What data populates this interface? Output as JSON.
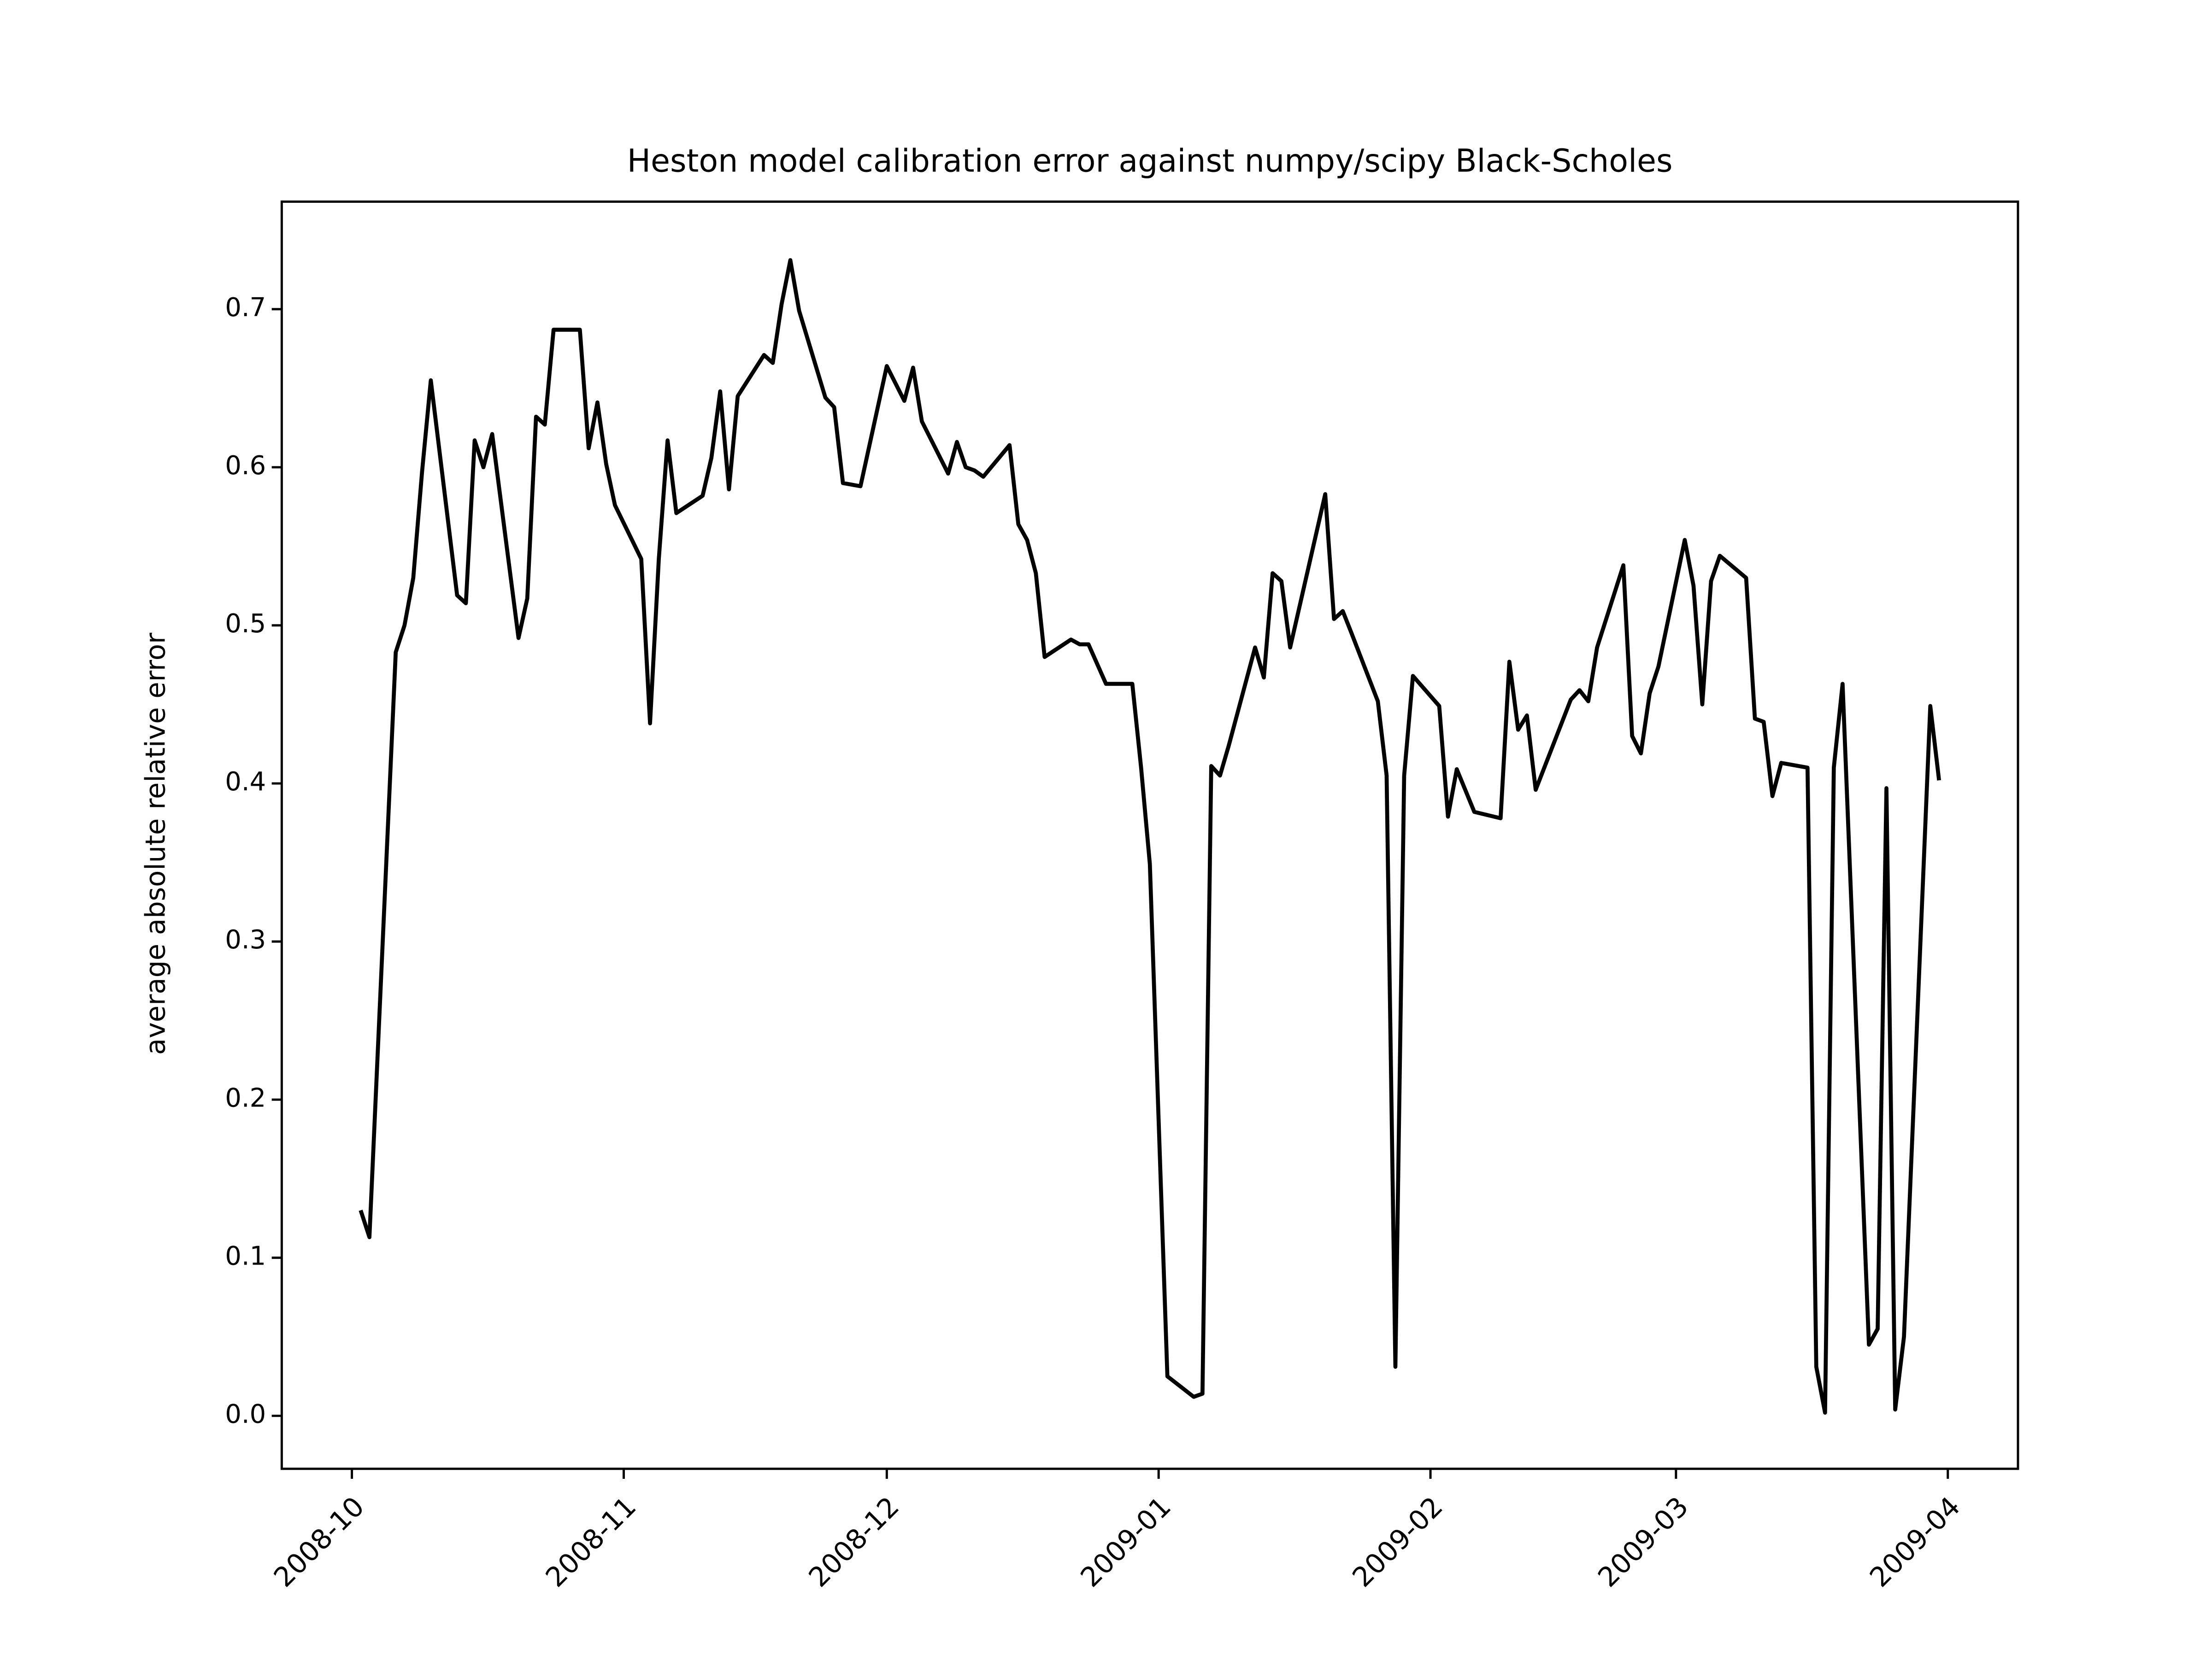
{
  "chart_data": {
    "type": "line",
    "title": "Heston model calibration error against numpy/scipy Black-Scholes",
    "y_label": "average absolute relative error",
    "x": [
      "2008-10-02",
      "2008-10-03",
      "2008-10-06",
      "2008-10-07",
      "2008-10-08",
      "2008-10-09",
      "2008-10-10",
      "2008-10-13",
      "2008-10-14",
      "2008-10-15",
      "2008-10-16",
      "2008-10-17",
      "2008-10-20",
      "2008-10-21",
      "2008-10-22",
      "2008-10-23",
      "2008-10-24",
      "2008-10-27",
      "2008-10-28",
      "2008-10-29",
      "2008-10-30",
      "2008-10-31",
      "2008-11-03",
      "2008-11-04",
      "2008-11-05",
      "2008-11-06",
      "2008-11-07",
      "2008-11-10",
      "2008-11-11",
      "2008-11-12",
      "2008-11-13",
      "2008-11-14",
      "2008-11-17",
      "2008-11-18",
      "2008-11-19",
      "2008-11-20",
      "2008-11-21",
      "2008-11-24",
      "2008-11-25",
      "2008-11-26",
      "2008-11-28",
      "2008-12-01",
      "2008-12-02",
      "2008-12-03",
      "2008-12-04",
      "2008-12-05",
      "2008-12-08",
      "2008-12-09",
      "2008-12-10",
      "2008-12-11",
      "2008-12-12",
      "2008-12-15",
      "2008-12-16",
      "2008-12-17",
      "2008-12-18",
      "2008-12-19",
      "2008-12-22",
      "2008-12-23",
      "2008-12-24",
      "2008-12-26",
      "2008-12-29",
      "2008-12-30",
      "2008-12-31",
      "2009-01-02",
      "2009-01-05",
      "2009-01-06",
      "2009-01-07",
      "2009-01-08",
      "2009-01-09",
      "2009-01-12",
      "2009-01-13",
      "2009-01-14",
      "2009-01-15",
      "2009-01-16",
      "2009-01-20",
      "2009-01-21",
      "2009-01-22",
      "2009-01-23",
      "2009-01-26",
      "2009-01-27",
      "2009-01-28",
      "2009-01-29",
      "2009-01-30",
      "2009-02-02",
      "2009-02-03",
      "2009-02-04",
      "2009-02-06",
      "2009-02-09",
      "2009-02-10",
      "2009-02-11",
      "2009-02-12",
      "2009-02-13",
      "2009-02-17",
      "2009-02-18",
      "2009-02-19",
      "2009-02-20",
      "2009-02-23",
      "2009-02-24",
      "2009-02-25",
      "2009-02-26",
      "2009-02-27",
      "2009-03-02",
      "2009-03-03",
      "2009-03-04",
      "2009-03-05",
      "2009-03-06",
      "2009-03-09",
      "2009-03-10",
      "2009-03-11",
      "2009-03-12",
      "2009-03-13",
      "2009-03-16",
      "2009-03-17",
      "2009-03-18",
      "2009-03-19",
      "2009-03-20",
      "2009-03-23",
      "2009-03-24",
      "2009-03-25",
      "2009-03-26",
      "2009-03-27",
      "2009-03-30",
      "2009-03-31"
    ],
    "series": [
      {
        "color": "#000000",
        "values": [
          0.13,
          0.113,
          0.483,
          0.5,
          0.53,
          0.597,
          0.655,
          0.519,
          0.514,
          0.617,
          0.6,
          0.621,
          0.492,
          0.517,
          0.632,
          0.627,
          0.687,
          0.687,
          0.612,
          0.641,
          0.602,
          0.576,
          0.542,
          0.438,
          0.542,
          0.617,
          0.571,
          0.582,
          0.606,
          0.648,
          0.586,
          0.645,
          0.671,
          0.666,
          0.703,
          0.731,
          0.699,
          0.644,
          0.638,
          0.59,
          0.588,
          0.664,
          0.653,
          0.642,
          0.663,
          0.629,
          0.596,
          0.616,
          0.6,
          0.598,
          0.594,
          0.614,
          0.564,
          0.554,
          0.533,
          0.48,
          0.491,
          0.488,
          0.488,
          0.463,
          0.463,
          0.41,
          0.349,
          0.025,
          0.012,
          0.014,
          0.411,
          0.405,
          0.424,
          0.486,
          0.467,
          0.533,
          0.528,
          0.486,
          0.583,
          0.504,
          0.509,
          0.495,
          0.452,
          0.405,
          0.031,
          0.405,
          0.468,
          0.449,
          0.379,
          0.409,
          0.382,
          0.378,
          0.477,
          0.434,
          0.443,
          0.396,
          0.453,
          0.459,
          0.452,
          0.486,
          0.538,
          0.43,
          0.419,
          0.457,
          0.474,
          0.554,
          0.525,
          0.45,
          0.528,
          0.544,
          0.53,
          0.441,
          0.439,
          0.392,
          0.413,
          0.41,
          0.031,
          0.002,
          0.41,
          0.463,
          0.045,
          0.055,
          0.397,
          0.004,
          0.05,
          0.449,
          0.402
        ]
      }
    ],
    "xlim": [
      "2008-09-23",
      "2009-04-09"
    ],
    "xticks": [
      {
        "value": "2008-10-01",
        "label": "2008-10"
      },
      {
        "value": "2008-11-01",
        "label": "2008-11"
      },
      {
        "value": "2008-12-01",
        "label": "2008-12"
      },
      {
        "value": "2009-01-01",
        "label": "2009-01"
      },
      {
        "value": "2009-02-01",
        "label": "2009-02"
      },
      {
        "value": "2009-03-01",
        "label": "2009-03"
      },
      {
        "value": "2009-04-01",
        "label": "2009-04"
      }
    ],
    "ylim": [
      -0.0335,
      0.768
    ],
    "yticks": [
      {
        "value": 0,
        "label": "0.0"
      },
      0.1,
      0.2,
      0.3,
      0.4,
      0.5,
      0.6,
      0.7
    ],
    "grid": false
  }
}
